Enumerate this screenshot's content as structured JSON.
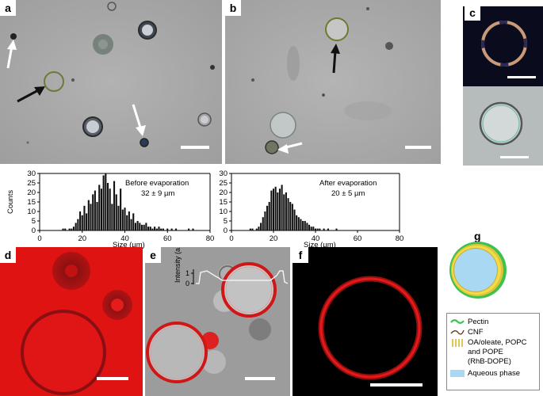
{
  "panel_labels": [
    "a",
    "b",
    "c",
    "d",
    "e",
    "f",
    "g"
  ],
  "histograms": [
    {
      "type": "bar",
      "title": "Before evaporation",
      "stat": "32 ± 9 µm",
      "xlabel": "Size (µm)",
      "ylabel": "Counts",
      "xlim": [
        0,
        80
      ],
      "ylim": [
        0,
        30
      ],
      "xticks": [
        "0",
        "20",
        "40",
        "60",
        "80"
      ],
      "yticks": [
        "0",
        "5",
        "10",
        "15",
        "20",
        "25",
        "30"
      ],
      "bin_centers": [
        11,
        12,
        13,
        14,
        15,
        16,
        17,
        18,
        19,
        20,
        21,
        22,
        23,
        24,
        25,
        26,
        27,
        28,
        29,
        30,
        31,
        32,
        33,
        34,
        35,
        36,
        37,
        38,
        39,
        40,
        41,
        42,
        43,
        44,
        45,
        46,
        47,
        48,
        49,
        50,
        51,
        52,
        53,
        54,
        55,
        56,
        57,
        58,
        59,
        60,
        61,
        62,
        63,
        64,
        65,
        70,
        71,
        72
      ],
      "values": [
        1,
        1,
        0,
        1,
        1,
        2,
        4,
        6,
        10,
        8,
        13,
        9,
        16,
        14,
        19,
        21,
        15,
        24,
        22,
        29,
        30,
        25,
        22,
        14,
        26,
        19,
        13,
        22,
        11,
        12,
        8,
        10,
        6,
        9,
        4,
        5,
        4,
        3,
        3,
        4,
        2,
        2,
        1,
        2,
        1,
        2,
        1,
        1,
        0,
        1,
        0,
        1,
        0,
        1,
        0,
        1,
        0,
        1
      ]
    },
    {
      "type": "bar",
      "title": "After evaporation",
      "stat": "20 ± 5 µm",
      "xlabel": "Size (µm)",
      "ylabel": "",
      "xlim": [
        0,
        80
      ],
      "ylim": [
        0,
        30
      ],
      "xticks": [
        "0",
        "20",
        "40",
        "60",
        "80"
      ],
      "yticks": [
        "0",
        "5",
        "10",
        "15",
        "20",
        "25",
        "30"
      ],
      "bin_centers": [
        9,
        10,
        11,
        12,
        13,
        14,
        15,
        16,
        17,
        18,
        19,
        20,
        21,
        22,
        23,
        24,
        25,
        26,
        27,
        28,
        29,
        30,
        31,
        32,
        33,
        34,
        35,
        36,
        37,
        38,
        39,
        40,
        41,
        42,
        43,
        44,
        45,
        46,
        47,
        48,
        49,
        50
      ],
      "values": [
        1,
        1,
        0,
        1,
        2,
        4,
        7,
        10,
        13,
        15,
        21,
        22,
        23,
        20,
        22,
        24,
        19,
        20,
        17,
        15,
        14,
        11,
        8,
        7,
        6,
        5,
        5,
        4,
        3,
        2,
        2,
        1,
        1,
        1,
        0,
        1,
        0,
        1,
        0,
        0,
        0,
        1
      ]
    }
  ],
  "intensity_label": "Intensity (a.u.)",
  "intensity_ticks": [
    "1",
    "0"
  ],
  "legend": {
    "items": [
      {
        "label": "Pectin",
        "color": "#3cc24e"
      },
      {
        "label": "CNF",
        "color": "#6b3a1f"
      },
      {
        "label": "OA/oleate, POPC",
        "color": "#d6b21f"
      },
      {
        "label": "and POPE",
        "color": ""
      },
      {
        "label": "(RhB-DOPE)",
        "color": ""
      },
      {
        "label": "Aqueous phase",
        "color": "#a9d8f3"
      }
    ]
  },
  "colors": {
    "microscope_gray": "#a8a8a8",
    "fluorescence_red": "#e01010",
    "pectin": "#3cc24e",
    "lipid": "#d6b21f",
    "aqueous": "#a9d8f3"
  }
}
